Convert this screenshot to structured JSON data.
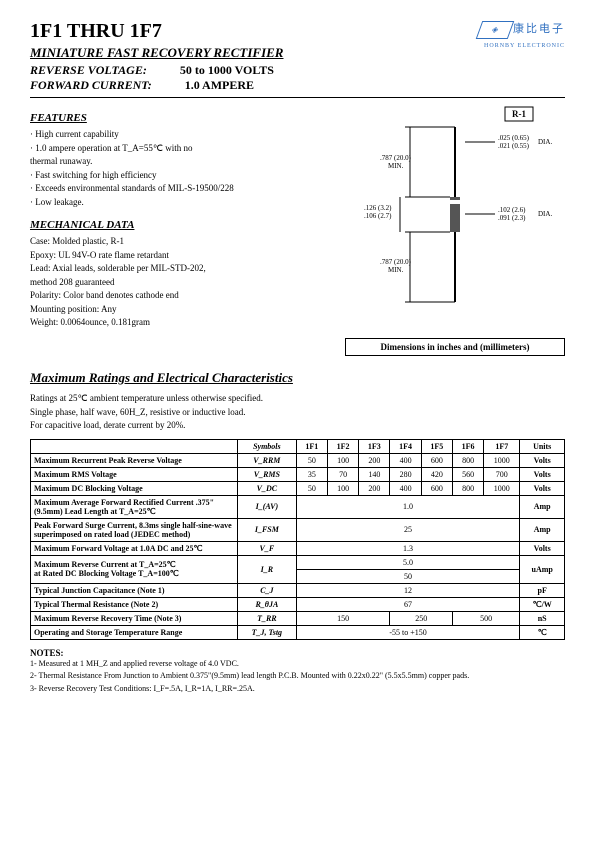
{
  "title": "1F1 THRU 1F7",
  "subtitle": "MINIATURE FAST RECOVERY RECTIFIER",
  "spec_lines": [
    {
      "label": "REVERSE VOLTAGE:",
      "value": "50 to 1000 VOLTS"
    },
    {
      "label": "FORWARD CURRENT:",
      "value": "1.0 AMPERE"
    }
  ],
  "logo": {
    "cjk": "康比电子",
    "sub": "HORNBY ELECTRONIC"
  },
  "features_heading": "FEATURES",
  "features": [
    "· High current capability",
    "· 1.0 ampere operation at T_A=55℃ with no",
    "  thermal runaway.",
    "· Fast switching for high efficiency",
    "· Exceeds environmental standards of MIL-S-19500/228",
    "· Low leakage."
  ],
  "mech_heading": "MECHANICAL DATA",
  "mechanical": [
    "Case: Molded plastic, R-1",
    "Epoxy: UL 94V-O rate flame retardant",
    "Lead: Axial leads, solderable per MIL-STD-202,",
    "method 208 guaranteed",
    "Polarity: Color band denotes cathode end",
    "Mounting position: Any",
    "Weight: 0.0064ounce, 0.181gram"
  ],
  "diagram": {
    "pkg_label": "R-1",
    "dims": [
      ".025 (0.65)",
      ".021 (0.55)",
      "DIA.",
      ".787 (20.0)",
      "MIN.",
      ".126 (3.2)",
      ".106 (2.7)",
      ".102 (2.6)",
      ".091 (2.3)",
      "DIA.",
      ".787 (20.0)",
      "MIN."
    ],
    "caption": "Dimensions in inches and (millimeters)"
  },
  "ratings_heading": "Maximum Ratings and Electrical Characteristics",
  "ratings_intro": [
    "Ratings at 25℃ ambient temperature unless otherwise specified.",
    "Single phase, half wave, 60H_Z, resistive or inductive load.",
    "For capacitive load, derate current by 20%."
  ],
  "table": {
    "head": [
      "Symbols",
      "1F1",
      "1F2",
      "1F3",
      "1F4",
      "1F5",
      "1F6",
      "1F7",
      "Units"
    ],
    "rows": [
      {
        "label": "Maximum Recurrent Peak Reverse Voltage",
        "sym": "V_RRM",
        "vals": [
          "50",
          "100",
          "200",
          "400",
          "600",
          "800",
          "1000"
        ],
        "unit": "Volts"
      },
      {
        "label": "Maximum RMS Voltage",
        "sym": "V_RMS",
        "vals": [
          "35",
          "70",
          "140",
          "280",
          "420",
          "560",
          "700"
        ],
        "unit": "Volts"
      },
      {
        "label": "Maximum DC Blocking Voltage",
        "sym": "V_DC",
        "vals": [
          "50",
          "100",
          "200",
          "400",
          "600",
          "800",
          "1000"
        ],
        "unit": "Volts"
      },
      {
        "label": "Maximum Average Forward Rectified Current .375\"(9.5mm) Lead Length at T_A=25℃",
        "sym": "I_(AV)",
        "span": "1.0",
        "unit": "Amp"
      },
      {
        "label": "Peak Forward Surge Current, 8.3ms single half-sine-wave superimposed on rated load (JEDEC method)",
        "sym": "I_FSM",
        "span": "25",
        "unit": "Amp"
      },
      {
        "label": "Maximum Forward Voltage at 1.0A DC and 25℃",
        "sym": "V_F",
        "span": "1.3",
        "unit": "Volts"
      },
      {
        "label": "Maximum Reverse Current        at T_A=25℃<br>at Rated DC Blocking Voltage     T_A=100℃",
        "sym": "I_R",
        "span2": [
          "5.0",
          "50"
        ],
        "unit": "uAmp"
      },
      {
        "label": "Typical Junction Capacitance (Note 1)",
        "sym": "C_J",
        "span": "12",
        "unit": "pF"
      },
      {
        "label": "Typical Thermal Resistance (Note 2)",
        "sym": "R_θJA",
        "span": "67",
        "unit": "℃/W"
      },
      {
        "label": "Maximum Reverse Recovery Time (Note 3)",
        "sym": "T_RR",
        "groups": [
          {
            "span": 3,
            "val": "150"
          },
          {
            "span": 2,
            "val": "250"
          },
          {
            "span": 2,
            "val": "500"
          }
        ],
        "unit": "nS"
      },
      {
        "label": "Operating and Storage Temperature Range",
        "sym": "T_J, Tstg",
        "span": "-55 to +150",
        "unit": "℃"
      }
    ]
  },
  "notes_heading": "NOTES:",
  "notes": [
    "1- Measured at 1 MH_Z and applied reverse voltage of 4.0 VDC.",
    "2- Thermal Resistance From Junction to Ambient  0.375\"(9.5mm) lead length P.C.B. Mounted with 0.22x0.22\" (5.5x5.5mm) copper pads.",
    "3- Reverse Recovery Test Conditions:  I_F=.5A,  I_R=1A,  I_RR=.25A."
  ]
}
